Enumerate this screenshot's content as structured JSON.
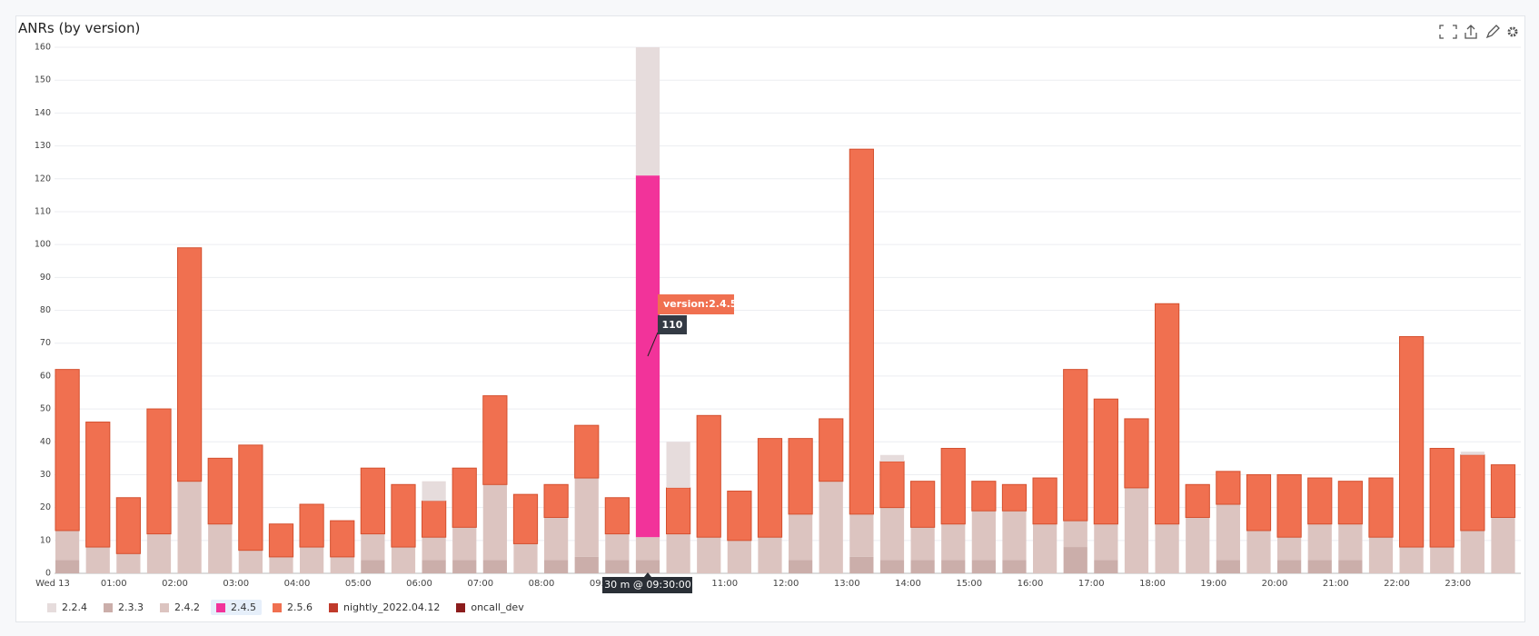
{
  "chart_data": {
    "type": "stacked_bar",
    "title": "ANRs (by version)",
    "categories": [
      "Wed 13",
      null,
      "01:00",
      null,
      "02:00",
      null,
      "03:00",
      null,
      "04:00",
      null,
      "05:00",
      null,
      "06:00",
      null,
      "07:00",
      null,
      "08:00",
      null,
      "09:00",
      null,
      "10:00",
      null,
      "11:00",
      null,
      "12:00",
      null,
      "13:00",
      null,
      "14:00",
      null,
      "15:00",
      null,
      "16:00",
      null,
      "17:00",
      null,
      "18:00",
      null,
      "19:00",
      null,
      "20:00",
      null,
      "21:00",
      null,
      "22:00",
      null,
      "23:00",
      null
    ],
    "series": [
      {
        "name": "2.2.4",
        "color": "#e6dcdc",
        "values": [
          0,
          0,
          0,
          0,
          0,
          0,
          0,
          0,
          0,
          0,
          0,
          0,
          6,
          0,
          0,
          0,
          0,
          0,
          0,
          39,
          14,
          0,
          0,
          0,
          0,
          0,
          0,
          2,
          0,
          0,
          0,
          0,
          0,
          0,
          0,
          0,
          0,
          0,
          0,
          0,
          0,
          0,
          0,
          0,
          0,
          0,
          1,
          0
        ]
      },
      {
        "name": "2.3.3",
        "color": "#cbaeaa",
        "values": [
          4,
          0,
          0,
          0,
          0,
          0,
          0,
          0,
          0,
          0,
          4,
          0,
          4,
          4,
          4,
          0,
          4,
          5,
          4,
          4,
          0,
          0,
          0,
          0,
          4,
          0,
          5,
          4,
          4,
          4,
          4,
          4,
          0,
          8,
          4,
          0,
          0,
          0,
          4,
          0,
          4,
          4,
          4,
          0,
          0,
          0,
          0,
          0
        ]
      },
      {
        "name": "2.4.2",
        "color": "#dcc4c0",
        "values": [
          9,
          8,
          6,
          12,
          28,
          15,
          7,
          5,
          8,
          5,
          8,
          8,
          7,
          10,
          23,
          9,
          13,
          24,
          8,
          7,
          12,
          11,
          10,
          11,
          14,
          28,
          13,
          16,
          10,
          11,
          15,
          15,
          15,
          8,
          11,
          26,
          15,
          17,
          17,
          13,
          7,
          11,
          11,
          11,
          8,
          8,
          13,
          17
        ]
      },
      {
        "name": "2.4.5",
        "color": "#f2339a",
        "values": [
          0,
          0,
          0,
          0,
          0,
          0,
          0,
          0,
          0,
          0,
          0,
          0,
          0,
          0,
          0,
          0,
          0,
          0,
          0,
          110,
          0,
          0,
          0,
          0,
          0,
          0,
          0,
          0,
          0,
          0,
          0,
          0,
          0,
          0,
          0,
          0,
          0,
          0,
          0,
          0,
          0,
          0,
          0,
          0,
          0,
          0,
          0,
          0
        ]
      },
      {
        "name": "2.5.6",
        "color": "#f07050",
        "values": [
          49,
          38,
          17,
          38,
          71,
          20,
          32,
          10,
          13,
          11,
          20,
          19,
          11,
          18,
          27,
          15,
          10,
          16,
          11,
          0,
          14,
          37,
          15,
          30,
          23,
          19,
          111,
          14,
          14,
          23,
          9,
          8,
          14,
          46,
          38,
          21,
          67,
          10,
          10,
          17,
          19,
          14,
          13,
          18,
          64,
          30,
          23,
          16
        ]
      },
      {
        "name": "nightly_2022.04.12",
        "color": "#c03a2b",
        "values": [
          0,
          0,
          0,
          0,
          0,
          0,
          0,
          0,
          0,
          0,
          0,
          0,
          0,
          0,
          0,
          0,
          0,
          0,
          0,
          0,
          0,
          0,
          0,
          0,
          0,
          0,
          0,
          0,
          0,
          0,
          0,
          0,
          0,
          0,
          0,
          0,
          0,
          0,
          0,
          0,
          0,
          0,
          0,
          0,
          0,
          0,
          0,
          0
        ]
      },
      {
        "name": "oncall_dev",
        "color": "#8c1c1c",
        "values": [
          0,
          0,
          0,
          0,
          0,
          0,
          0,
          0,
          0,
          0,
          0,
          0,
          0,
          0,
          0,
          0,
          0,
          0,
          0,
          0,
          0,
          0,
          0,
          0,
          0,
          0,
          0,
          0,
          0,
          0,
          0,
          0,
          0,
          0,
          0,
          0,
          0,
          0,
          0,
          0,
          0,
          0,
          0,
          0,
          0,
          0,
          0,
          0
        ]
      }
    ],
    "ylim": [
      0,
      160
    ],
    "yticks": [
      0,
      10,
      20,
      30,
      40,
      50,
      60,
      70,
      80,
      90,
      100,
      110,
      120,
      130,
      140,
      150,
      160
    ],
    "grid": true,
    "highlighted_series": "2.4.5",
    "hover_label": "version:2.4.5",
    "x_hover_label": "30 m @ 09:30:00"
  }
}
